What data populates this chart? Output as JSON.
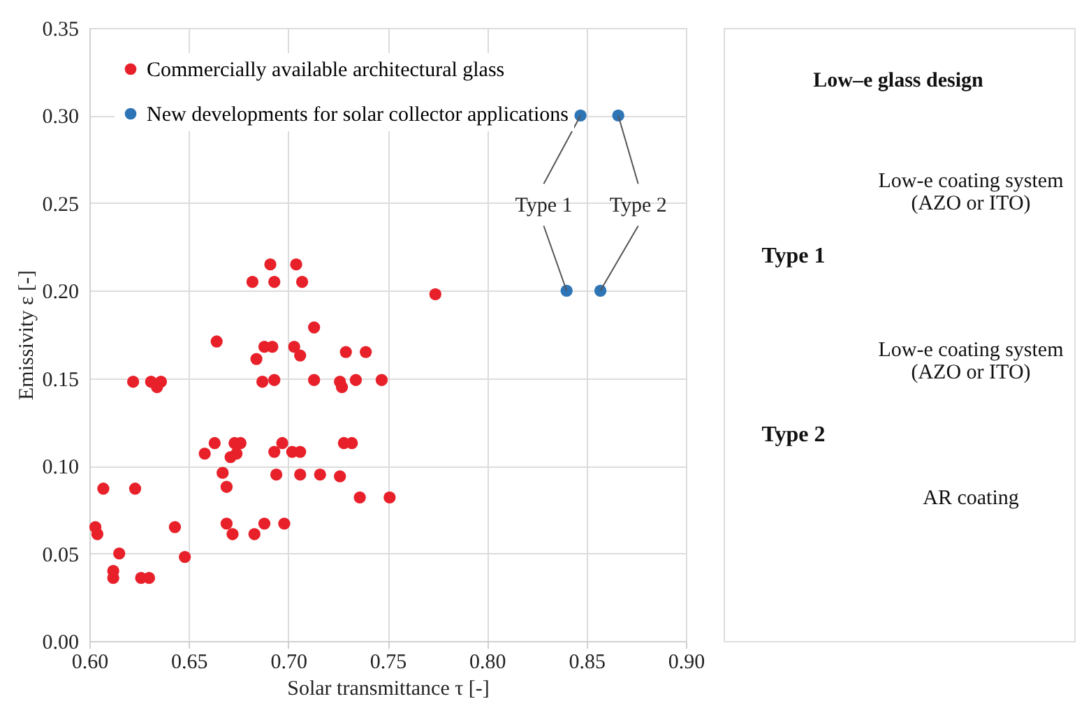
{
  "chart_data": [
    {
      "type": "scatter",
      "xlabel": "Solar transmittance τ [-]",
      "ylabel": "Emissivity ε [-]",
      "xlim": [
        0.6,
        0.9
      ],
      "ylim": [
        0,
        0.35
      ],
      "xticks": [
        {
          "value": 0.6,
          "label": "0.60"
        },
        0.65,
        {
          "value": 0.7,
          "label": "0.70"
        },
        0.75,
        {
          "value": 0.8,
          "label": "0.80"
        },
        0.85,
        {
          "value": 0.9,
          "label": "0.90"
        }
      ],
      "yticks": [
        {
          "value": 0,
          "label": "0.00"
        },
        0.05,
        {
          "value": 0.1,
          "label": "0.10"
        },
        0.15,
        {
          "value": 0.2,
          "label": "0.20"
        },
        0.25,
        {
          "value": 0.3,
          "label": "0.30"
        },
        0.35
      ],
      "grid": true,
      "legend": "top left",
      "marker": "circle",
      "series": [
        {
          "name": "Commercially available architectural glass",
          "color": "#e8202a",
          "x": [
            0.691,
            0.704,
            0.682,
            0.693,
            0.707,
            0.774,
            0.713,
            0.664,
            0.688,
            0.692,
            0.703,
            0.706,
            0.684,
            0.729,
            0.739,
            0.622,
            0.631,
            0.636,
            0.634,
            0.687,
            0.693,
            0.713,
            0.726,
            0.727,
            0.734,
            0.747,
            0.663,
            0.673,
            0.676,
            0.658,
            0.671,
            0.674,
            0.697,
            0.693,
            0.702,
            0.706,
            0.728,
            0.732,
            0.667,
            0.694,
            0.706,
            0.716,
            0.726,
            0.669,
            0.607,
            0.623,
            0.736,
            0.751,
            0.603,
            0.604,
            0.643,
            0.669,
            0.688,
            0.698,
            0.672,
            0.683,
            0.615,
            0.648,
            0.612,
            0.612,
            0.626,
            0.63
          ],
          "values": [
            0.215,
            0.215,
            0.205,
            0.205,
            0.205,
            0.198,
            0.179,
            0.171,
            0.168,
            0.168,
            0.168,
            0.163,
            0.161,
            0.165,
            0.165,
            0.148,
            0.148,
            0.148,
            0.145,
            0.148,
            0.149,
            0.149,
            0.148,
            0.145,
            0.149,
            0.149,
            0.113,
            0.113,
            0.113,
            0.107,
            0.105,
            0.107,
            0.113,
            0.108,
            0.108,
            0.108,
            0.113,
            0.113,
            0.096,
            0.095,
            0.095,
            0.095,
            0.094,
            0.088,
            0.087,
            0.087,
            0.082,
            0.082,
            0.065,
            0.061,
            0.065,
            0.067,
            0.067,
            0.067,
            0.061,
            0.061,
            0.05,
            0.048,
            0.04,
            0.036,
            0.036,
            0.036
          ]
        },
        {
          "name": "New developments for solar collector applications",
          "color": "#2e75b6",
          "x": [
            0.84,
            0.847,
            0.857,
            0.866
          ],
          "values": [
            0.2,
            0.3,
            0.2,
            0.3
          ]
        }
      ],
      "annotations": [
        {
          "text": "Type 1",
          "x": 0.84,
          "y": 0.2
        },
        {
          "text": "Type 2",
          "x": 0.857,
          "y": 0.2
        }
      ]
    },
    {
      "type": "other",
      "title": "Low–e glass design",
      "annotations": [
        "Low-e coating system",
        "(AZO or ITO)",
        "Type 1",
        "Low-e coating system",
        "(AZO or ITO)",
        "Type 2",
        "AR coating"
      ]
    }
  ]
}
